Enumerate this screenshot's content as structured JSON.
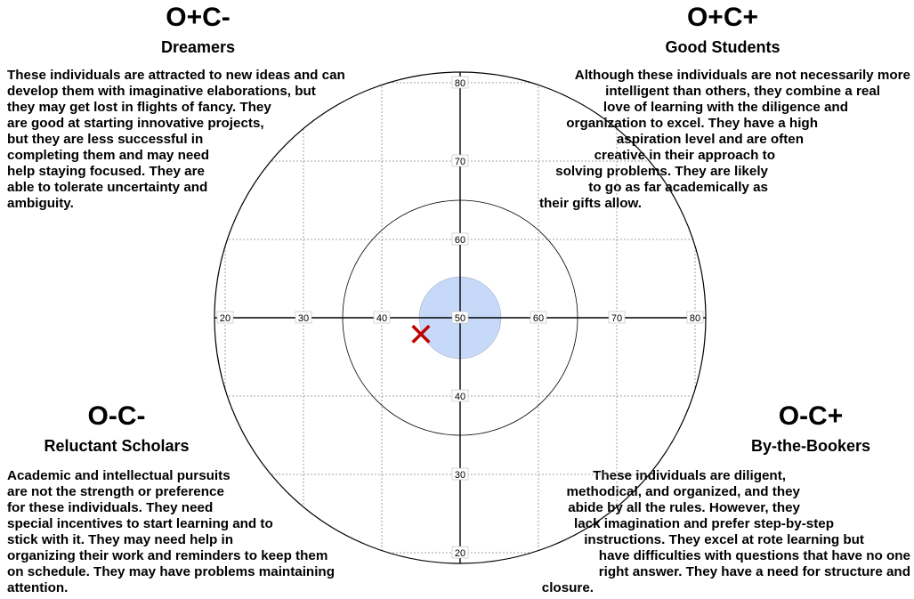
{
  "quadrants": {
    "top_left": {
      "code": "O+C-",
      "name": "Dreamers",
      "lines": [
        "These individuals are attracted to new ideas and can",
        "develop them with imaginative elaborations, but",
        "they may get lost in flights of fancy. They",
        "are good at starting innovative projects,",
        "but they are less successful in",
        "completing them and may need",
        "help staying focused. They are",
        "able to tolerate uncertainty and",
        "ambiguity."
      ]
    },
    "top_right": {
      "code": "O+C+",
      "name": "Good Students",
      "lines": [
        "Although these individuals are not necessarily more",
        "intelligent than others, they combine a real",
        "love of learning with the diligence and",
        "organization to excel. They have a high",
        "aspiration level and are often",
        "creative in their approach to",
        "solving problems. They are likely",
        "to go as far academically as",
        "their gifts allow."
      ]
    },
    "bottom_left": {
      "code": "O-C-",
      "name": "Reluctant Scholars",
      "lines": [
        "Academic and intellectual pursuits",
        "are not the strength or preference",
        "for these individuals. They need",
        "special incentives to start learning and to",
        "stick with it. They may need help in",
        "organizing their work and reminders to keep them",
        "on schedule. They may have problems maintaining",
        "attention."
      ]
    },
    "bottom_right": {
      "code": "O-C+",
      "name": "By-the-Bookers",
      "lines": [
        "These individuals are diligent,",
        "methodical, and organized, and they",
        "abide by all the rules. However, they",
        "lack imagination and prefer step-by-step",
        "instructions. They excel at rote learning but",
        "have difficulties with questions that have no one",
        "right answer. They have a need for structure and",
        "closure."
      ]
    }
  },
  "plot": {
    "x_ticks": [
      "20",
      "30",
      "40",
      "50",
      "60",
      "70",
      "80"
    ],
    "y_ticks": [
      "80",
      "70",
      "60",
      "50",
      "40",
      "30",
      "20"
    ],
    "marker": {
      "x": 45,
      "y": 47.8,
      "symbol": "✕",
      "color": "#c00000"
    },
    "center_fill": "#c6d9f8"
  }
}
